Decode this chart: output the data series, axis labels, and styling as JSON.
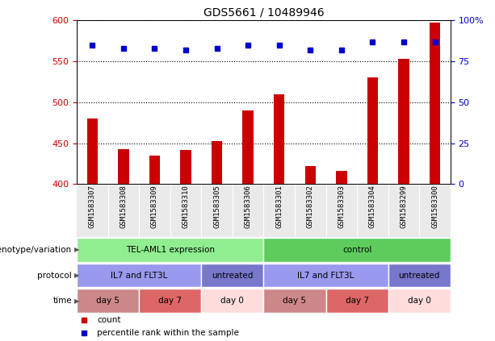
{
  "title": "GDS5661 / 10489946",
  "samples": [
    "GSM1583307",
    "GSM1583308",
    "GSM1583309",
    "GSM1583310",
    "GSM1583305",
    "GSM1583306",
    "GSM1583301",
    "GSM1583302",
    "GSM1583303",
    "GSM1583304",
    "GSM1583299",
    "GSM1583300"
  ],
  "counts": [
    480,
    443,
    435,
    442,
    453,
    490,
    510,
    422,
    416,
    530,
    553,
    597
  ],
  "percentiles": [
    85,
    83,
    83,
    82,
    83,
    85,
    85,
    82,
    82,
    87,
    87,
    87
  ],
  "ylim_left": [
    400,
    600
  ],
  "ylim_right": [
    0,
    100
  ],
  "yticks_left": [
    400,
    450,
    500,
    550,
    600
  ],
  "yticks_right": [
    0,
    25,
    50,
    75,
    100
  ],
  "bar_color": "#cc0000",
  "dot_color": "#0000cc",
  "bg_color": "#ffffff",
  "genotype_groups": [
    {
      "text": "TEL-AML1 expression",
      "start": 0,
      "end": 5,
      "color": "#90ee90"
    },
    {
      "text": "control",
      "start": 6,
      "end": 11,
      "color": "#5dcc5d"
    }
  ],
  "protocol_groups": [
    {
      "text": "IL7 and FLT3L",
      "start": 0,
      "end": 3,
      "color": "#9999ee"
    },
    {
      "text": "untreated",
      "start": 4,
      "end": 5,
      "color": "#7777cc"
    },
    {
      "text": "IL7 and FLT3L",
      "start": 6,
      "end": 9,
      "color": "#9999ee"
    },
    {
      "text": "untreated",
      "start": 10,
      "end": 11,
      "color": "#7777cc"
    }
  ],
  "time_groups": [
    {
      "text": "day 5",
      "start": 0,
      "end": 1,
      "color": "#cc8888"
    },
    {
      "text": "day 7",
      "start": 2,
      "end": 3,
      "color": "#dd6666"
    },
    {
      "text": "day 0",
      "start": 4,
      "end": 5,
      "color": "#ffdddd"
    },
    {
      "text": "day 5",
      "start": 6,
      "end": 7,
      "color": "#cc8888"
    },
    {
      "text": "day 7",
      "start": 8,
      "end": 9,
      "color": "#dd6666"
    },
    {
      "text": "day 0",
      "start": 10,
      "end": 11,
      "color": "#ffdddd"
    }
  ],
  "legend": [
    {
      "label": "count",
      "color": "#cc0000"
    },
    {
      "label": "percentile rank within the sample",
      "color": "#0000cc"
    }
  ],
  "row_labels": [
    "genotype/variation",
    "protocol",
    "time"
  ]
}
